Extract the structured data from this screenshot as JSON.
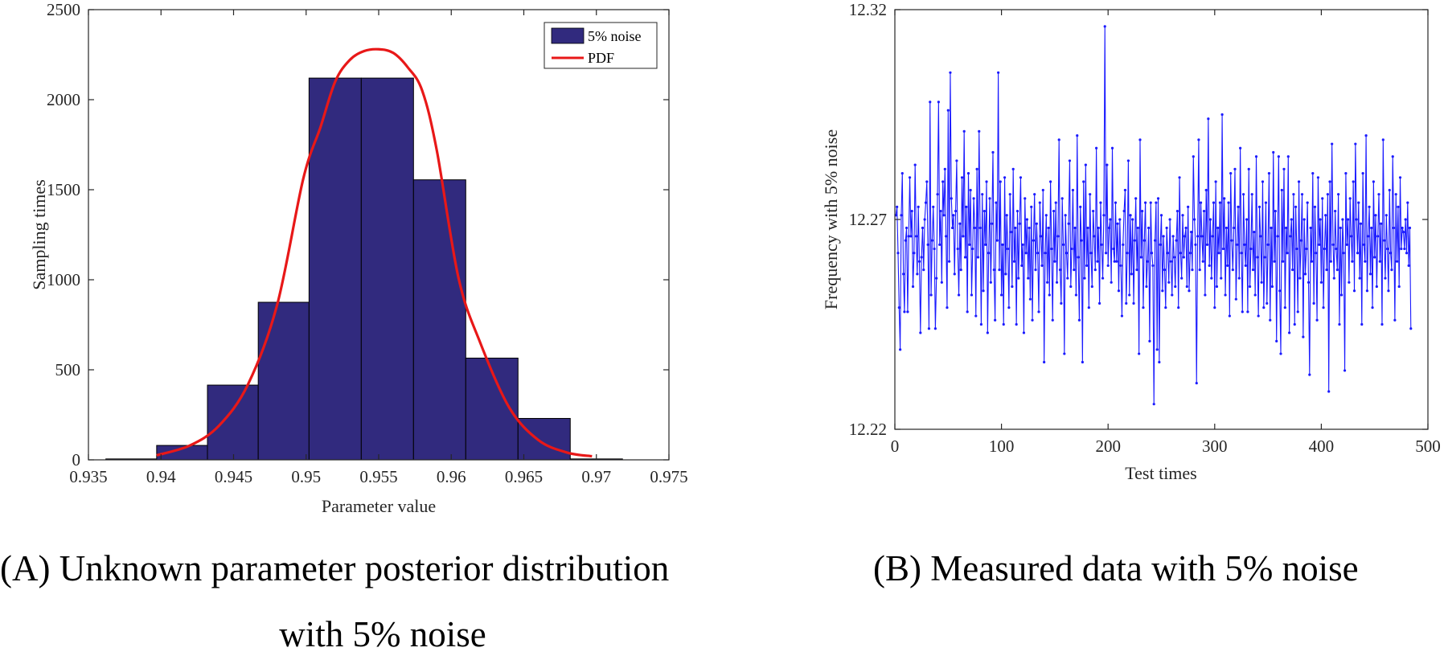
{
  "chart_data": [
    {
      "type": "bar",
      "xlabel": "Parameter value",
      "ylabel": "Sampling times",
      "xlim": [
        0.935,
        0.975
      ],
      "ylim": [
        0,
        2500
      ],
      "xticks": [
        "0.935",
        "0.94",
        "0.945",
        "0.95",
        "0.955",
        "0.96",
        "0.965",
        "0.97",
        "0.975"
      ],
      "yticks": [
        "0",
        "500",
        "1000",
        "1500",
        "2000",
        "2500"
      ],
      "bin_edges": [
        0.9362,
        0.9397,
        0.9432,
        0.9467,
        0.9502,
        0.9538,
        0.9574,
        0.961,
        0.9646,
        0.9682,
        0.9718
      ],
      "values": [
        5,
        80,
        415,
        875,
        2120,
        2120,
        1555,
        565,
        230,
        5
      ],
      "bar_color": "#312a7e",
      "pdf": {
        "x": [
          0.9397,
          0.942,
          0.944,
          0.946,
          0.948,
          0.9498,
          0.951,
          0.952,
          0.953,
          0.954,
          0.955,
          0.956,
          0.957,
          0.958,
          0.959,
          0.9605,
          0.962,
          0.964,
          0.966,
          0.968,
          0.9697
        ],
        "y": [
          25,
          80,
          190,
          420,
          860,
          1560,
          1850,
          2100,
          2220,
          2270,
          2280,
          2260,
          2180,
          2050,
          1720,
          1010,
          650,
          290,
          110,
          40,
          20
        ],
        "color": "#e81818"
      },
      "legend": {
        "entries": [
          "5% noise",
          "PDF"
        ],
        "position": "top-right"
      },
      "caption_line1": "(A)  Unknown parameter posterior distribution",
      "caption_line2": "with 5% noise"
    },
    {
      "type": "line",
      "xlabel": "Test times",
      "ylabel": "Frequency with 5% noise",
      "xlim": [
        0,
        500
      ],
      "ylim": [
        12.22,
        12.32
      ],
      "xticks": [
        "0",
        "100",
        "200",
        "300",
        "400",
        "500"
      ],
      "yticks": [
        "12.22",
        "12.27",
        "12.32"
      ],
      "series": [
        {
          "color": "#1a1aff",
          "x_start": 1,
          "x_step": 1,
          "values": [
            12.271,
            12.273,
            12.262,
            12.249,
            12.239,
            12.271,
            12.281,
            12.257,
            12.248,
            12.265,
            12.268,
            12.248,
            12.266,
            12.28,
            12.266,
            12.272,
            12.254,
            12.262,
            12.283,
            12.266,
            12.257,
            12.273,
            12.26,
            12.243,
            12.261,
            12.268,
            12.258,
            12.27,
            12.274,
            12.279,
            12.264,
            12.244,
            12.298,
            12.252,
            12.265,
            12.273,
            12.263,
            12.244,
            12.256,
            12.276,
            12.298,
            12.264,
            12.272,
            12.255,
            12.279,
            12.271,
            12.282,
            12.266,
            12.249,
            12.296,
            12.26,
            12.305,
            12.275,
            12.268,
            12.271,
            12.257,
            12.272,
            12.284,
            12.263,
            12.252,
            12.269,
            12.258,
            12.28,
            12.266,
            12.291,
            12.261,
            12.273,
            12.248,
            12.281,
            12.264,
            12.277,
            12.252,
            12.263,
            12.275,
            12.268,
            12.247,
            12.282,
            12.261,
            12.291,
            12.268,
            12.245,
            12.276,
            12.253,
            12.272,
            12.264,
            12.279,
            12.243,
            12.262,
            12.275,
            12.255,
            12.269,
            12.286,
            12.258,
            12.246,
            12.274,
            12.265,
            12.305,
            12.258,
            12.279,
            12.252,
            12.264,
            12.245,
            12.28,
            12.257,
            12.271,
            12.263,
            12.249,
            12.276,
            12.267,
            12.254,
            12.282,
            12.26,
            12.268,
            12.245,
            12.272,
            12.256,
            12.269,
            12.28,
            12.259,
            12.264,
            12.243,
            12.275,
            12.262,
            12.27,
            12.256,
            12.268,
            12.251,
            12.273,
            12.246,
            12.265,
            12.276,
            12.258,
            12.269,
            12.262,
            12.248,
            12.274,
            12.266,
            12.259,
            12.277,
            12.236,
            12.262,
            12.271,
            12.255,
            12.268,
            12.252,
            12.279,
            12.263,
            12.246,
            12.272,
            12.26,
            12.274,
            12.255,
            12.266,
            12.289,
            12.258,
            12.25,
            12.275,
            12.264,
            12.238,
            12.271,
            12.262,
            12.256,
            12.269,
            12.284,
            12.254,
            12.263,
            12.277,
            12.258,
            12.268,
            12.252,
            12.29,
            12.261,
            12.246,
            12.273,
            12.265,
            12.236,
            12.279,
            12.256,
            12.283,
            12.259,
            12.268,
            12.249,
            12.276,
            12.262,
            12.254,
            12.272,
            12.266,
            12.258,
            12.287,
            12.26,
            12.268,
            12.25,
            12.274,
            12.264,
            12.256,
            12.271,
            12.316,
            12.262,
            12.283,
            12.259,
            12.268,
            12.27,
            12.255,
            12.287,
            12.263,
            12.26,
            12.274,
            12.26,
            12.269,
            12.253,
            12.27,
            12.259,
            12.247,
            12.264,
            12.272,
            12.277,
            12.25,
            12.262,
            12.284,
            12.252,
            12.271,
            12.257,
            12.27,
            12.25,
            12.265,
            12.275,
            12.258,
            12.268,
            12.238,
            12.289,
            12.261,
            12.272,
            12.249,
            12.265,
            12.274,
            12.254,
            12.26,
            12.268,
            12.241,
            12.274,
            12.262,
            12.259,
            12.226,
            12.265,
            12.274,
            12.239,
            12.275,
            12.236,
            12.264,
            12.271,
            12.253,
            12.266,
            12.258,
            12.249,
            12.268,
            12.262,
            12.255,
            12.27,
            12.26,
            12.252,
            12.266,
            12.261,
            12.254,
            12.265,
            12.272,
            12.249,
            12.28,
            12.262,
            12.256,
            12.271,
            12.261,
            12.266,
            12.268,
            12.254,
            12.273,
            12.253,
            12.262,
            12.267,
            12.258,
            12.285,
            12.27,
            12.264,
            12.231,
            12.266,
            12.289,
            12.258,
            12.274,
            12.266,
            12.26,
            12.272,
            12.252,
            12.277,
            12.264,
            12.294,
            12.259,
            12.27,
            12.256,
            12.266,
            12.274,
            12.249,
            12.279,
            12.254,
            12.268,
            12.262,
            12.274,
            12.256,
            12.295,
            12.263,
            12.275,
            12.252,
            12.268,
            12.259,
            12.274,
            12.247,
            12.281,
            12.265,
            12.258,
            12.268,
            12.282,
            12.251,
            12.264,
            12.273,
            12.256,
            12.287,
            12.262,
            12.248,
            12.276,
            12.264,
            12.259,
            12.27,
            12.248,
            12.282,
            12.254,
            12.263,
            12.276,
            12.258,
            12.267,
            12.252,
            12.285,
            12.261,
            12.247,
            12.273,
            12.266,
            12.255,
            12.279,
            12.249,
            12.261,
            12.274,
            12.25,
            12.264,
            12.281,
            12.246,
            12.268,
            12.254,
            12.286,
            12.26,
            12.272,
            12.241,
            12.266,
            12.285,
            12.253,
            12.238,
            12.277,
            12.26,
            12.282,
            12.249,
            12.268,
            12.262,
            12.285,
            12.243,
            12.266,
            12.27,
            12.258,
            12.276,
            12.245,
            12.273,
            12.263,
            12.248,
            12.279,
            12.256,
            12.265,
            12.276,
            12.242,
            12.27,
            12.257,
            12.263,
            12.274,
            12.255,
            12.233,
            12.268,
            12.26,
            12.281,
            12.25,
            12.273,
            12.262,
            12.246,
            12.28,
            12.264,
            12.27,
            12.255,
            12.275,
            12.249,
            12.263,
            12.271,
            12.258,
            12.276,
            12.229,
            12.279,
            12.26,
            12.288,
            12.264,
            12.256,
            12.272,
            12.263,
            12.258,
            12.276,
            12.245,
            12.268,
            12.252,
            12.27,
            12.262,
            12.234,
            12.281,
            12.264,
            12.27,
            12.255,
            12.275,
            12.266,
            12.26,
            12.279,
            12.253,
            12.288,
            12.27,
            12.262,
            12.274,
            12.256,
            12.269,
            12.245,
            12.281,
            12.264,
            12.26,
            12.29,
            12.253,
            12.266,
            12.273,
            12.257,
            12.268,
            12.249,
            12.279,
            12.261,
            12.271,
            12.254,
            12.266,
            12.276,
            12.26,
            12.269,
            12.245,
            12.289,
            12.265,
            12.256,
            12.271,
            12.263,
            12.253,
            12.277,
            12.262,
            12.258,
            12.285,
            12.268,
            12.246,
            12.276,
            12.26,
            12.273,
            12.254,
            12.28,
            12.263,
            12.268,
            12.267,
            12.263,
            12.27,
            12.262,
            12.274,
            12.259,
            12.268,
            12.244
          ]
        }
      ],
      "caption": "(B)  Measured data with 5% noise"
    }
  ]
}
